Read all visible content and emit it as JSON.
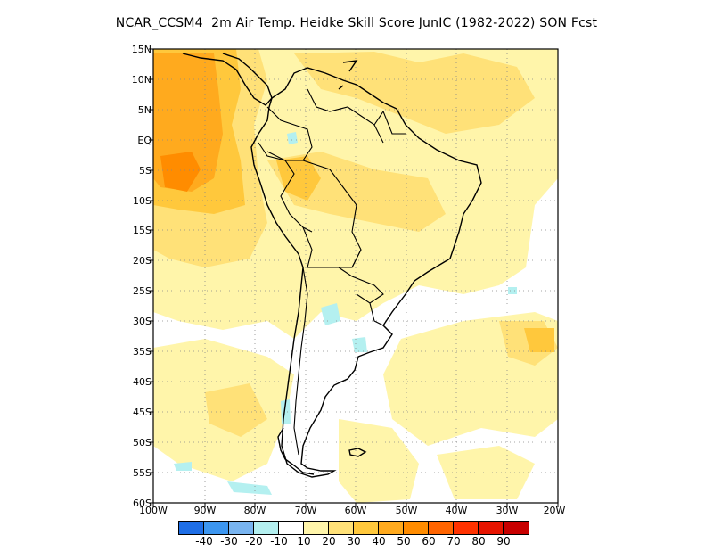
{
  "title": "NCAR_CCSM4  2m Air Temp. Heidke Skill Score JunIC (1982-2022) SON Fcst",
  "lat_labels": [
    "15N",
    "10N",
    "5N",
    "EQ",
    "5S",
    "10S",
    "15S",
    "20S",
    "25S",
    "30S",
    "35S",
    "40S",
    "45S",
    "50S",
    "55S",
    "60S"
  ],
  "lon_labels": [
    "100W",
    "90W",
    "80W",
    "70W",
    "60W",
    "50W",
    "40W",
    "30W",
    "20W"
  ],
  "colorbar": {
    "colors": [
      "#1e6ee6",
      "#3c96f0",
      "#78b4f0",
      "#b4f0f0",
      "#ffffff",
      "#fff5aa",
      "#ffe178",
      "#ffc83c",
      "#ffaa1e",
      "#ff8c00",
      "#ff6400",
      "#ff3200",
      "#e61400",
      "#c80000",
      "#a00000"
    ],
    "tick_labels": [
      "-40",
      "-30",
      "-20",
      "-10",
      "10",
      "20",
      "30",
      "40",
      "50",
      "60",
      "70",
      "80",
      "90"
    ]
  },
  "legend_colors": {
    "light_yellow": "#fff5aa",
    "yellow": "#ffe178",
    "light_orange": "#ffc83c",
    "orange": "#ffaa1e",
    "dark_orange": "#ff8c00",
    "light_cyan": "#b4f0f0"
  }
}
